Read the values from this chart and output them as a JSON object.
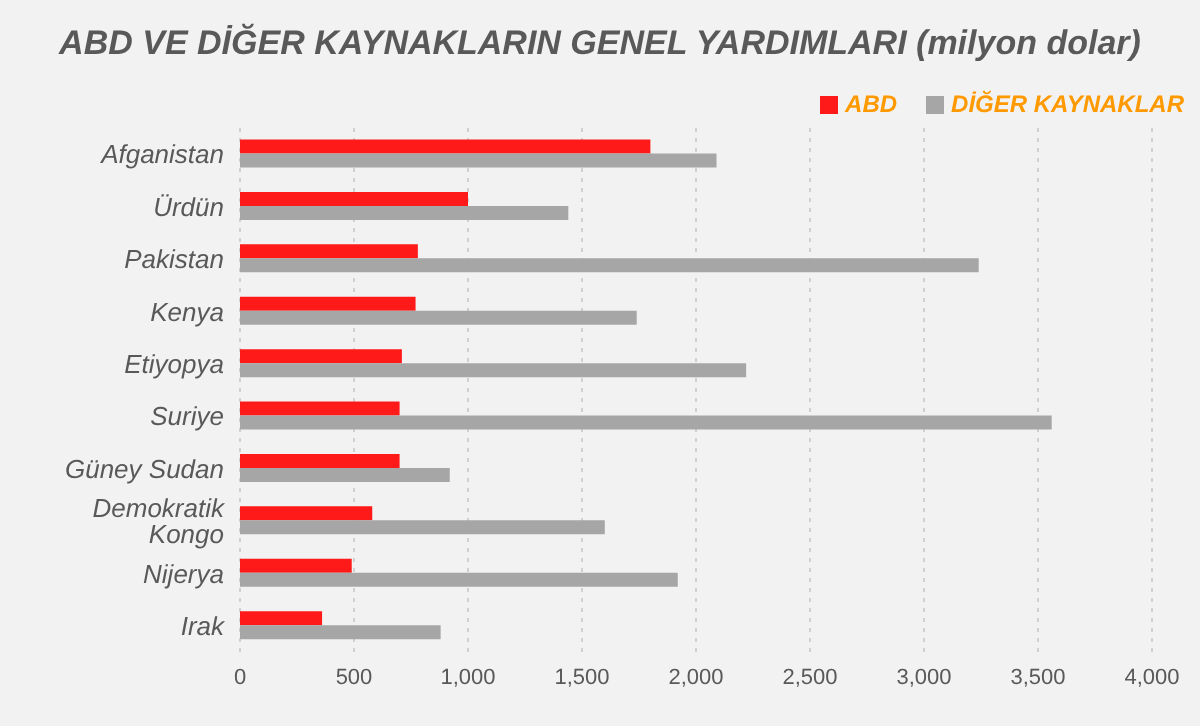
{
  "chart_data": {
    "type": "bar",
    "orientation": "horizontal",
    "title": "ABD VE DİĞER KAYNAKLARIN GENEL YARDIMLARI (milyon dolar)",
    "categories": [
      "Afganistan",
      "Ürdün",
      "Pakistan",
      "Kenya",
      "Etiyopya",
      "Suriye",
      "Güney Sudan",
      "Demokratik Kongo",
      "Nijerya",
      "Irak"
    ],
    "series": [
      {
        "name": "ABD",
        "color": "#ff1a1a",
        "values": [
          1800,
          1000,
          780,
          770,
          710,
          700,
          700,
          580,
          490,
          360
        ]
      },
      {
        "name": "DİĞER KAYNAKLAR",
        "color": "#a6a6a6",
        "values": [
          2090,
          1440,
          3240,
          1740,
          2220,
          3560,
          920,
          1600,
          1920,
          880
        ]
      }
    ],
    "xlim": [
      0,
      4000
    ],
    "xticks": [
      {
        "value": 0,
        "label": "0"
      },
      {
        "value": 500,
        "label": "500"
      },
      {
        "value": 1000,
        "label": "1,000"
      },
      {
        "value": 1500,
        "label": "1,500"
      },
      {
        "value": 2000,
        "label": "2,000"
      },
      {
        "value": 2500,
        "label": "2,500"
      },
      {
        "value": 3000,
        "label": "3,000"
      },
      {
        "value": 3500,
        "label": "3,500"
      },
      {
        "value": 4000,
        "label": "4,000"
      }
    ],
    "grid": "x",
    "legend": "top right"
  }
}
